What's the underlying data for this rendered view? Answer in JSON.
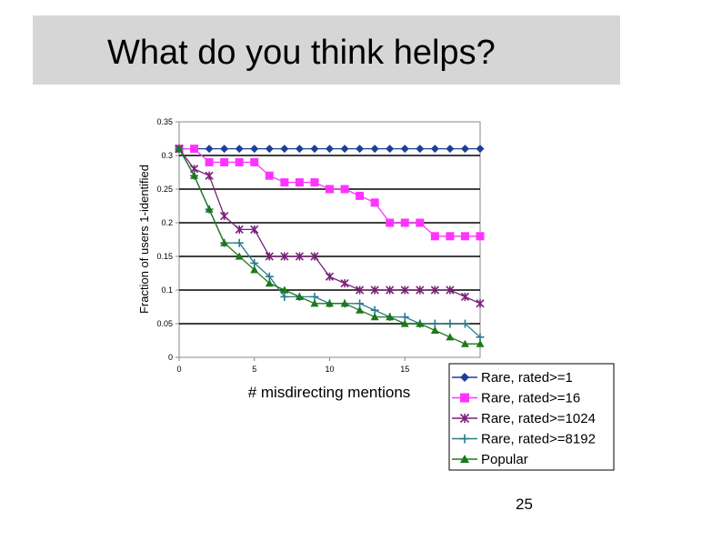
{
  "slide": {
    "title": "What do you think helps?",
    "page_number": "25"
  },
  "chart_data": {
    "type": "line",
    "title": "",
    "xlabel": "# misdirecting mentions",
    "ylabel": "Fraction of users 1-identified",
    "xlim": [
      0,
      20
    ],
    "ylim": [
      0,
      0.35
    ],
    "x_ticks": [
      "0",
      "5",
      "10",
      "15"
    ],
    "y_ticks": [
      "0",
      "0.05",
      "0.1",
      "0.15",
      "0.2",
      "0.25",
      "0.3",
      "0.35"
    ],
    "grid": "horizontal",
    "legend_position": "bottom-right",
    "x": [
      0,
      1,
      2,
      3,
      4,
      5,
      6,
      7,
      8,
      9,
      10,
      11,
      12,
      13,
      14,
      15,
      16,
      17,
      18,
      19,
      20
    ],
    "series": [
      {
        "name": "Rare, rated>=1",
        "color": "#1f3d99",
        "marker": "diamond",
        "values": [
          0.31,
          0.31,
          0.31,
          0.31,
          0.31,
          0.31,
          0.31,
          0.31,
          0.31,
          0.31,
          0.31,
          0.31,
          0.31,
          0.31,
          0.31,
          0.31,
          0.31,
          0.31,
          0.31,
          0.31,
          0.31
        ]
      },
      {
        "name": "Rare, rated>=16",
        "color": "#ff33ff",
        "marker": "square",
        "values": [
          0.31,
          0.31,
          0.29,
          0.29,
          0.29,
          0.29,
          0.27,
          0.26,
          0.26,
          0.26,
          0.25,
          0.25,
          0.24,
          0.23,
          0.2,
          0.2,
          0.2,
          0.18,
          0.18,
          0.18,
          0.18
        ]
      },
      {
        "name": "Rare, rated>=1024",
        "color": "#7a1f7a",
        "marker": "asterisk",
        "values": [
          0.31,
          0.28,
          0.27,
          0.21,
          0.19,
          0.19,
          0.15,
          0.15,
          0.15,
          0.15,
          0.12,
          0.11,
          0.1,
          0.1,
          0.1,
          0.1,
          0.1,
          0.1,
          0.1,
          0.09,
          0.08
        ]
      },
      {
        "name": "Rare, rated>=8192",
        "color": "#2a7a8c",
        "marker": "plus",
        "values": [
          0.31,
          0.27,
          0.22,
          0.17,
          0.17,
          0.14,
          0.12,
          0.09,
          0.09,
          0.09,
          0.08,
          0.08,
          0.08,
          0.07,
          0.06,
          0.06,
          0.05,
          0.05,
          0.05,
          0.05,
          0.03
        ]
      },
      {
        "name": "Popular",
        "color": "#1a7a1a",
        "marker": "triangle",
        "values": [
          0.31,
          0.27,
          0.22,
          0.17,
          0.15,
          0.13,
          0.11,
          0.1,
          0.09,
          0.08,
          0.08,
          0.08,
          0.07,
          0.06,
          0.06,
          0.05,
          0.05,
          0.04,
          0.03,
          0.02,
          0.02
        ]
      }
    ]
  }
}
